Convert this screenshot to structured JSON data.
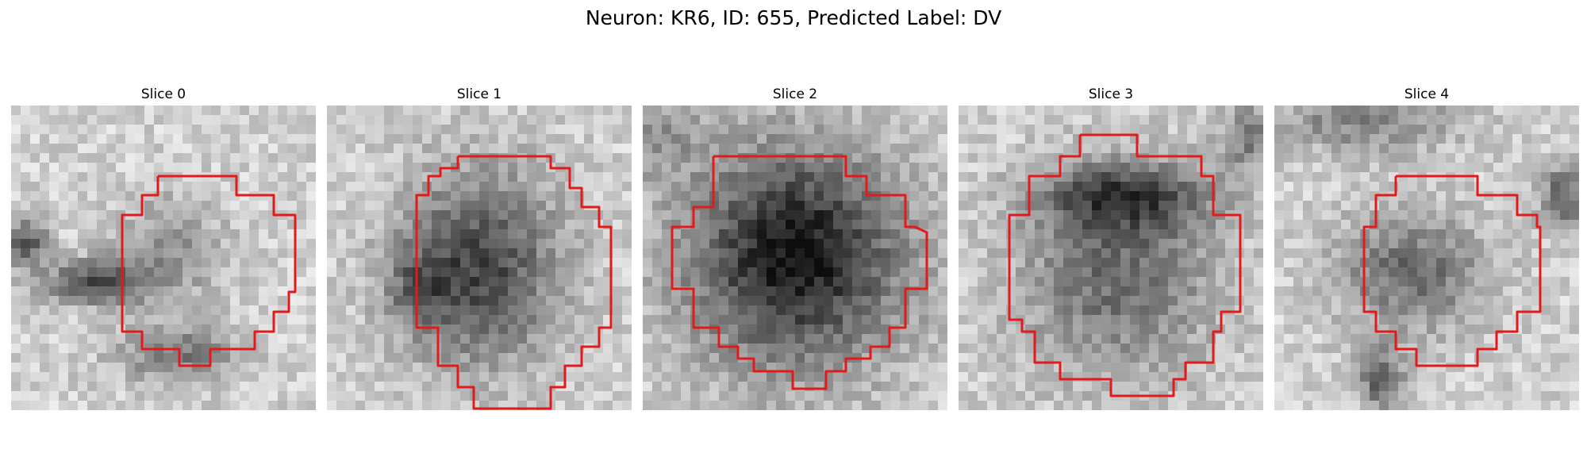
{
  "figure": {
    "title": "Neuron: KR6, ID: 655, Predicted Label: DV"
  },
  "slices": [
    {
      "label": "Slice 0"
    },
    {
      "label": "Slice 1"
    },
    {
      "label": "Slice 2"
    },
    {
      "label": "Slice 3"
    },
    {
      "label": "Slice 4"
    }
  ],
  "colors": {
    "contour": "#e31a1c",
    "background": "#ffffff",
    "colormap": "gray"
  }
}
